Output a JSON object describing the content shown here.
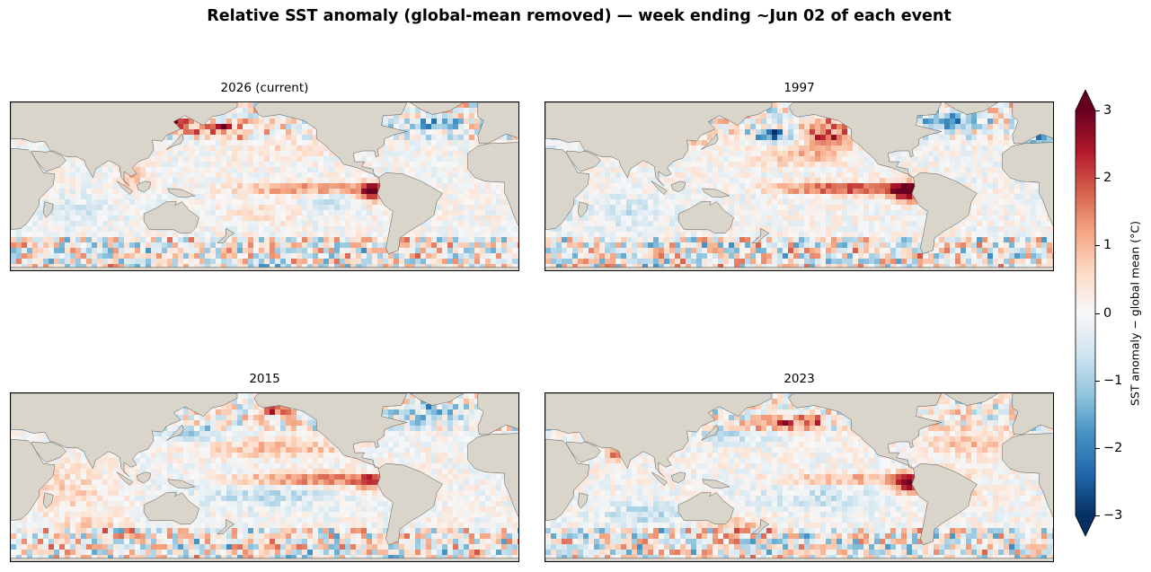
{
  "figure": {
    "title": "Relative SST anomaly (global-mean removed) — week ending ~Jun 02 of each event"
  },
  "panels": [
    {
      "title": "2026 (current)",
      "pattern": "current"
    },
    {
      "title": "1997",
      "pattern": "1997"
    },
    {
      "title": "2015",
      "pattern": "2015"
    },
    {
      "title": "2023",
      "pattern": "2023"
    }
  ],
  "colorbar": {
    "label": "SST anomaly − global mean (°C)",
    "min": -3,
    "max": 3,
    "extend": "both",
    "colormap": "RdBu_r",
    "ticks": [
      {
        "value": 3,
        "label": "3"
      },
      {
        "value": 2,
        "label": "2"
      },
      {
        "value": 1,
        "label": "1"
      },
      {
        "value": 0,
        "label": "0"
      },
      {
        "value": -1,
        "label": "−1"
      },
      {
        "value": -2,
        "label": "−2"
      },
      {
        "value": -3,
        "label": "−3"
      }
    ],
    "colors": [
      "#053061",
      "#2166ac",
      "#4393c3",
      "#92c5de",
      "#d1e5f0",
      "#f7f7f7",
      "#fddbc7",
      "#f4a582",
      "#d6604d",
      "#b2182b",
      "#67001f"
    ]
  },
  "map_style": {
    "land_color": "#d9d5cb",
    "coast_color": "#555555"
  }
}
